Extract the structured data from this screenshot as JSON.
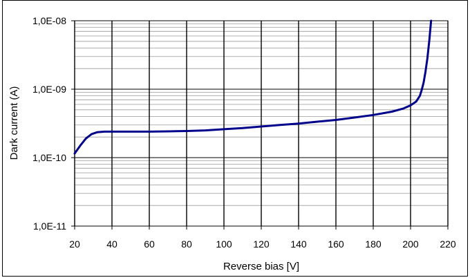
{
  "chart_data": {
    "type": "line",
    "title": "",
    "xlabel": "Reverse bias [V]",
    "ylabel": "Dark current  (A)",
    "xlim": [
      20,
      220
    ],
    "ylim": [
      1e-11,
      1e-08
    ],
    "yscale": "log",
    "grid": true,
    "legend": "none",
    "xticks": [
      "20",
      "40",
      "60",
      "80",
      "100",
      "120",
      "140",
      "160",
      "180",
      "200",
      "220"
    ],
    "yticks": [
      "1,0E-08",
      "1,0E-09",
      "1,0E-10",
      "1,0E-11"
    ],
    "series": [
      {
        "color": "#00008B",
        "x": [
          20,
          23,
          26,
          29,
          32,
          36,
          40,
          50,
          60,
          70,
          80,
          90,
          100,
          110,
          120,
          130,
          140,
          150,
          160,
          170,
          180,
          190,
          196,
          200,
          203,
          205,
          206,
          207,
          208,
          209,
          210,
          211
        ],
        "y": [
          1.15e-10,
          1.5e-10,
          1.9e-10,
          2.2e-10,
          2.35e-10,
          2.4e-10,
          2.4e-10,
          2.4e-10,
          2.4e-10,
          2.42e-10,
          2.45e-10,
          2.5e-10,
          2.6e-10,
          2.7e-10,
          2.85e-10,
          3e-10,
          3.15e-10,
          3.35e-10,
          3.55e-10,
          3.85e-10,
          4.2e-10,
          4.7e-10,
          5.2e-10,
          5.8e-10,
          6.6e-10,
          8e-10,
          9.8e-10,
          1.25e-09,
          1.8e-09,
          2.8e-09,
          5e-09,
          1e-08
        ]
      }
    ]
  }
}
